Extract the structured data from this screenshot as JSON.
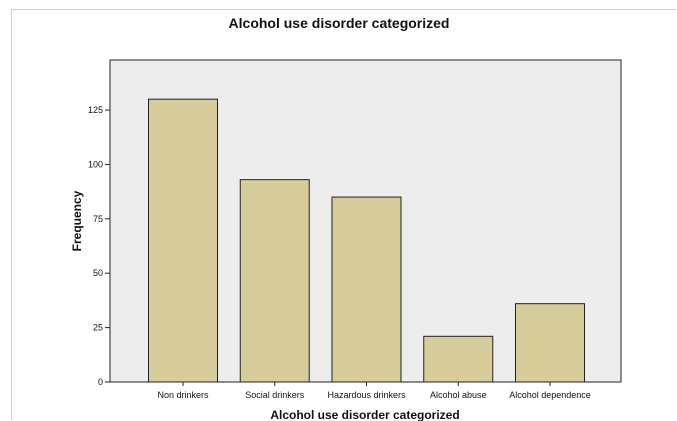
{
  "chart_data": {
    "type": "bar",
    "title": "Alcohol use disorder categorized",
    "xlabel": "Alcohol use disorder categorized",
    "ylabel": "Frequency",
    "categories": [
      "Non drinkers",
      "Social drinkers",
      "Hazardous drinkers",
      "Alcohol abuse",
      "Alcohol dependence"
    ],
    "values": [
      130,
      93,
      85,
      21,
      36
    ],
    "ylim": [
      0,
      148
    ],
    "yticks": [
      0,
      25,
      50,
      75,
      100,
      125
    ],
    "ytick_labels": [
      "0",
      "25",
      "50",
      "75",
      "100",
      "125"
    ],
    "grid": false,
    "colors": {
      "bar_fill": "#d6cd9a",
      "bar_stroke": "#222222",
      "plot_background": "#ededed"
    }
  }
}
